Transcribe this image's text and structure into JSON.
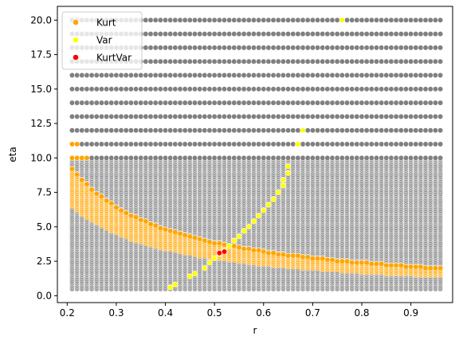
{
  "chart_data": {
    "type": "scatter",
    "xlabel": "r",
    "ylabel": "eta",
    "xlim": [
      0.18,
      0.985
    ],
    "ylim": [
      -0.5,
      21.0
    ],
    "xticks": [
      0.2,
      0.3,
      0.4,
      0.5,
      0.6,
      0.7,
      0.8,
      0.9
    ],
    "xtick_labels": [
      "0.2",
      "0.3",
      "0.4",
      "0.5",
      "0.6",
      "0.7",
      "0.8",
      "0.9"
    ],
    "yticks": [
      0.0,
      2.5,
      5.0,
      7.5,
      10.0,
      12.5,
      15.0,
      17.5,
      20.0
    ],
    "ytick_labels": [
      "0.0",
      "2.5",
      "5.0",
      "7.5",
      "10.0",
      "12.5",
      "15.0",
      "17.5",
      "20.0"
    ],
    "grid": false,
    "legend_placement": "upper-left",
    "background_grid": {
      "color": "#808080",
      "r_range": [
        0.21,
        0.96
      ],
      "r_step": 0.01,
      "eta_dense_range": [
        0.5,
        10.0
      ],
      "eta_dense_step": 0.1,
      "eta_sparse_range": [
        10.0,
        20.0
      ],
      "eta_sparse_step": 1.0
    },
    "series": [
      {
        "name": "Kurt",
        "color": "#ffa500",
        "points": [
          [
            0.21,
            10.0
          ],
          [
            0.22,
            10.0
          ],
          [
            0.23,
            10.0
          ],
          [
            0.24,
            10.0
          ],
          [
            0.21,
            11.0
          ],
          [
            0.22,
            11.0
          ]
        ],
        "band": {
          "r_range": [
            0.21,
            0.96
          ],
          "r_step": 0.01,
          "eta_step": 0.1,
          "center_constant": 1.65,
          "half_width_fraction": 0.18,
          "eta_max": 10.0
        }
      },
      {
        "name": "Var",
        "color": "#ffff00",
        "points": [
          [
            0.41,
            0.6
          ],
          [
            0.42,
            0.8
          ],
          [
            0.45,
            1.4
          ],
          [
            0.46,
            1.6
          ],
          [
            0.48,
            2.0
          ],
          [
            0.49,
            2.4
          ],
          [
            0.5,
            2.7
          ],
          [
            0.51,
            3.0
          ],
          [
            0.52,
            3.3
          ],
          [
            0.53,
            3.6
          ],
          [
            0.54,
            4.0
          ],
          [
            0.55,
            4.3
          ],
          [
            0.56,
            4.7
          ],
          [
            0.57,
            5.0
          ],
          [
            0.58,
            5.4
          ],
          [
            0.59,
            5.8
          ],
          [
            0.6,
            6.2
          ],
          [
            0.61,
            6.6
          ],
          [
            0.62,
            7.0
          ],
          [
            0.63,
            7.5
          ],
          [
            0.64,
            8.0
          ],
          [
            0.64,
            8.4
          ],
          [
            0.65,
            8.9
          ],
          [
            0.65,
            9.4
          ],
          [
            0.67,
            11.0
          ],
          [
            0.68,
            12.0
          ],
          [
            0.76,
            20.0
          ]
        ]
      },
      {
        "name": "KurtVar",
        "color": "#ff0000",
        "points": [
          [
            0.51,
            3.1
          ],
          [
            0.52,
            3.2
          ]
        ]
      }
    ]
  }
}
